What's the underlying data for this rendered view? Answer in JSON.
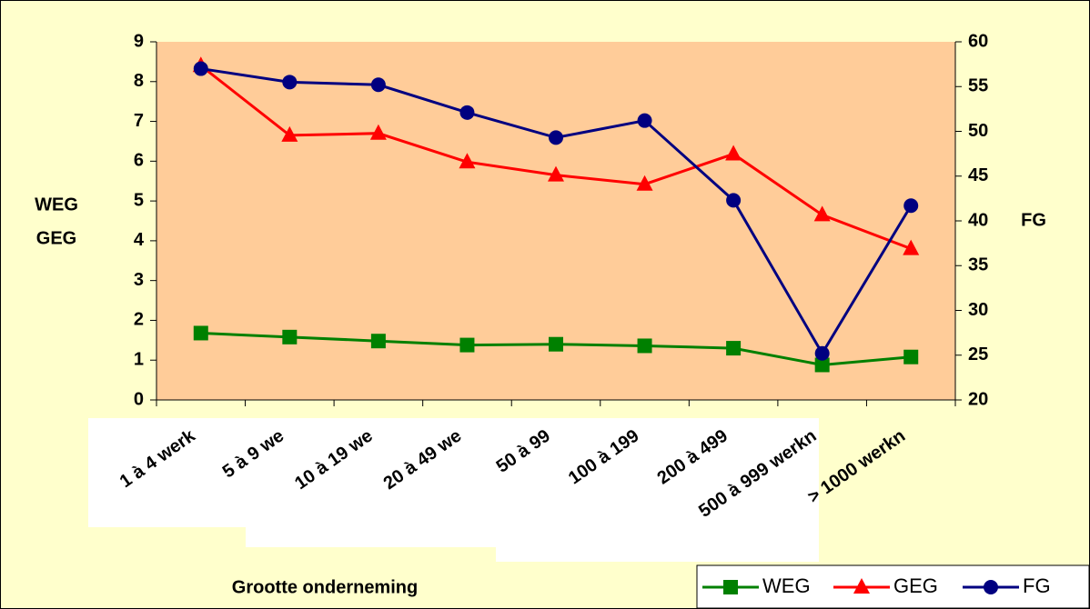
{
  "chart_data": {
    "type": "line",
    "ylabel": [
      "WEG",
      "GEG"
    ],
    "y2label": "FG",
    "xlabel": "Grootte onderneming",
    "categories": [
      "1 à 4 werk",
      "5 à 9 we",
      "10 à 19 we",
      "20 à 49 we",
      "50 à 99",
      "100 à 199",
      "200 à 499",
      "500 à 999 werkn",
      "> 1000 werkn"
    ],
    "series": [
      {
        "name": "WEG",
        "color": "#008000",
        "marker": "square",
        "values": [
          1.68,
          1.58,
          1.48,
          1.38,
          1.4,
          1.36,
          1.3,
          0.88,
          1.08
        ]
      },
      {
        "name": "GEG",
        "color": "#ff0000",
        "marker": "triangle",
        "values": [
          8.4,
          6.65,
          6.7,
          5.98,
          5.65,
          5.42,
          6.18,
          4.65,
          3.8
        ]
      },
      {
        "name": "FG",
        "color": "#000080",
        "marker": "circle",
        "axis": "y2",
        "values": [
          57.0,
          55.5,
          55.2,
          52.1,
          49.3,
          51.2,
          42.3,
          25.2,
          41.7
        ]
      }
    ],
    "ylim": [
      0,
      9
    ],
    "yticks": [
      0,
      1,
      2,
      3,
      4,
      5,
      6,
      7,
      8,
      9
    ],
    "y2lim": [
      20,
      60
    ],
    "y2ticks": [
      20,
      25,
      30,
      35,
      40,
      45,
      50,
      55,
      60
    ],
    "grid": false
  }
}
